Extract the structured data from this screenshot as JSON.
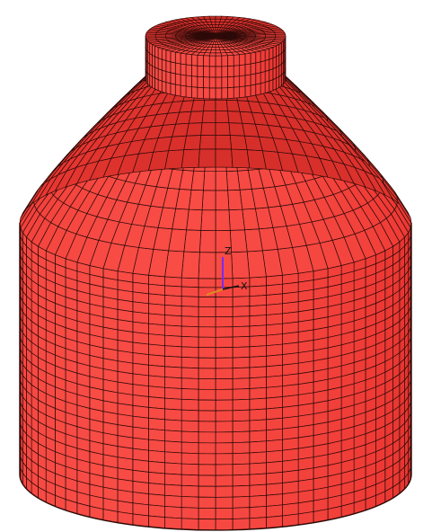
{
  "colors": {
    "background": "#ffffff",
    "body_fill": "#ef3a35",
    "body_fill_light": "#ff5a52",
    "body_fill_dark": "#b8211d",
    "mesh_line": "#2b0a08",
    "axis_z": "#7a2cff",
    "axis_x": "#111111",
    "axis_y": "#e08a20"
  },
  "mesh": {
    "circumferential_divisions": 36,
    "wall_rows": 24,
    "roof_rings": 9,
    "neck_rows": 4,
    "neck_top_rings": 7,
    "shoulder_rows": 3
  },
  "triad": {
    "z_label": "Z",
    "x_label": "X"
  }
}
